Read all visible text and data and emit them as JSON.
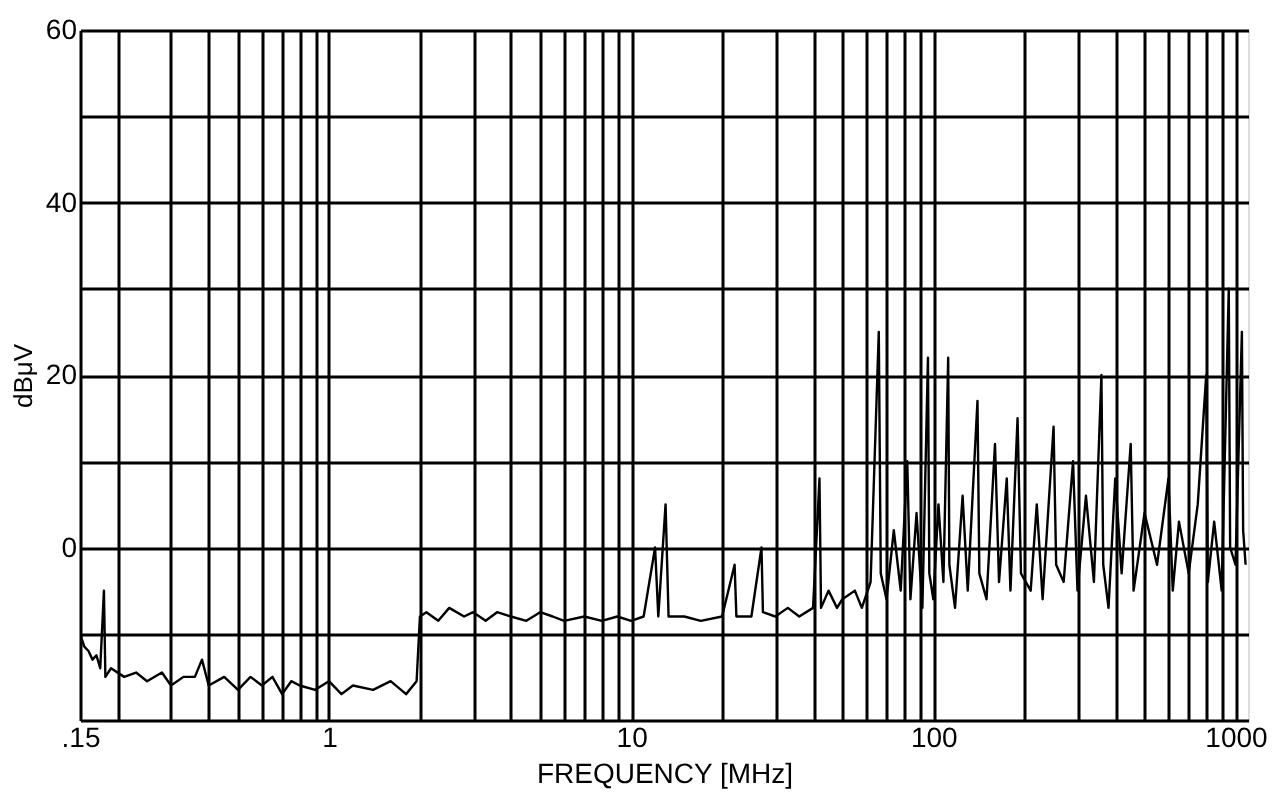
{
  "chart_data": {
    "type": "line",
    "xlabel": "FREQUENCY [MHz]",
    "ylabel": "dBμV",
    "log": "x",
    "grid": true,
    "legend": false,
    "marker": "none",
    "line_style": "solid",
    "xlim": [
      0.15,
      1100
    ],
    "ylim": [
      -20,
      60
    ],
    "xticks": [
      {
        "value": 0.15,
        "label": ".15"
      },
      {
        "value": 0.2,
        "label": null
      },
      {
        "value": 0.3,
        "label": null
      },
      {
        "value": 0.4,
        "label": null
      },
      {
        "value": 0.5,
        "label": null
      },
      {
        "value": 0.6,
        "label": null
      },
      {
        "value": 0.7,
        "label": null
      },
      {
        "value": 0.8,
        "label": null
      },
      {
        "value": 0.9,
        "label": null
      },
      1,
      {
        "value": 2,
        "label": null
      },
      {
        "value": 3,
        "label": null
      },
      {
        "value": 4,
        "label": null
      },
      {
        "value": 5,
        "label": null
      },
      {
        "value": 6,
        "label": null
      },
      {
        "value": 7,
        "label": null
      },
      {
        "value": 8,
        "label": null
      },
      {
        "value": 9,
        "label": null
      },
      10,
      {
        "value": 20,
        "label": null
      },
      {
        "value": 30,
        "label": null
      },
      {
        "value": 40,
        "label": null
      },
      {
        "value": 50,
        "label": null
      },
      {
        "value": 60,
        "label": null
      },
      {
        "value": 70,
        "label": null
      },
      {
        "value": 80,
        "label": null
      },
      {
        "value": 90,
        "label": null
      },
      100,
      {
        "value": 200,
        "label": null
      },
      {
        "value": 300,
        "label": null
      },
      {
        "value": 400,
        "label": null
      },
      {
        "value": 500,
        "label": null
      },
      {
        "value": 600,
        "label": null
      },
      {
        "value": 700,
        "label": null
      },
      {
        "value": 800,
        "label": null
      },
      {
        "value": 900,
        "label": null
      },
      1000
    ],
    "yticks": [
      {
        "value": -20,
        "label": null
      },
      {
        "value": -10,
        "label": null
      },
      0,
      {
        "value": 10,
        "label": null
      },
      20,
      {
        "value": 30,
        "label": null
      },
      40,
      {
        "value": 50,
        "label": null
      },
      60
    ],
    "series": [
      {
        "color": "#000000",
        "x": [
          0.15,
          0.155,
          0.16,
          0.165,
          0.17,
          0.175,
          0.18,
          0.182,
          0.19,
          0.21,
          0.23,
          0.25,
          0.28,
          0.3,
          0.33,
          0.36,
          0.38,
          0.4,
          0.45,
          0.5,
          0.55,
          0.6,
          0.65,
          0.7,
          0.75,
          0.8,
          0.9,
          1.0,
          1.1,
          1.2,
          1.4,
          1.6,
          1.8,
          1.95,
          2.0,
          2.1,
          2.3,
          2.5,
          2.8,
          3.0,
          3.3,
          3.6,
          4,
          4.5,
          5,
          5.5,
          6,
          7,
          8,
          9,
          10,
          11,
          12,
          12.3,
          13,
          13.3,
          15,
          17,
          20,
          22,
          22.3,
          25,
          27,
          27.3,
          30,
          33,
          36,
          40,
          42,
          42.5,
          45,
          48,
          50,
          55,
          58,
          62,
          66,
          67,
          70,
          74,
          78,
          82,
          84,
          88,
          92,
          96,
          97,
          100,
          104,
          108,
          112,
          113,
          118,
          125,
          130,
          140,
          142,
          150,
          160,
          165,
          175,
          180,
          190,
          195,
          210,
          220,
          230,
          250,
          255,
          270,
          290,
          300,
          320,
          340,
          360,
          365,
          380,
          400,
          420,
          450,
          460,
          500,
          550,
          600,
          620,
          650,
          700,
          750,
          800,
          810,
          850,
          900,
          950,
          960,
          1000,
          1050,
          1060,
          1080
        ],
        "values": [
          -10,
          -11.5,
          -12,
          -13,
          -12.5,
          -14,
          -5,
          -15,
          -14,
          -15,
          -14.5,
          -15.5,
          -14.5,
          -16,
          -15,
          -15,
          -13,
          -16,
          -15,
          -16.5,
          -15,
          -16,
          -15,
          -17,
          -15.5,
          -16,
          -16.5,
          -15.5,
          -17,
          -16,
          -16.5,
          -15.5,
          -17,
          -15.5,
          -8,
          -7.5,
          -8.5,
          -7,
          -8,
          -7.5,
          -8.5,
          -7.5,
          -8,
          -8.5,
          -7.5,
          -8,
          -8.5,
          -8,
          -8.5,
          -8,
          -8.5,
          -8,
          0,
          -8,
          5,
          -8,
          -8,
          -8.5,
          -8,
          -2,
          -8,
          -8,
          0,
          -7.5,
          -8,
          -7,
          -8,
          -7,
          8,
          -7,
          -5,
          -7,
          -6,
          -5,
          -7,
          -4,
          25,
          -3,
          -6,
          2,
          -5,
          10,
          -6,
          4,
          -7,
          22,
          -3,
          -6,
          5,
          -4,
          22,
          -2,
          -7,
          6,
          -5,
          17,
          -3,
          -6,
          12,
          -4,
          8,
          -5,
          15,
          -3,
          -5,
          5,
          -6,
          14,
          -2,
          -4,
          10,
          -5,
          6,
          -4,
          20,
          -2,
          -7,
          8,
          -3,
          12,
          -5,
          4,
          -2,
          8,
          -5,
          3,
          -3,
          5,
          20,
          -4,
          3,
          -5,
          30,
          0,
          -2,
          25,
          2,
          -2
        ]
      }
    ]
  }
}
